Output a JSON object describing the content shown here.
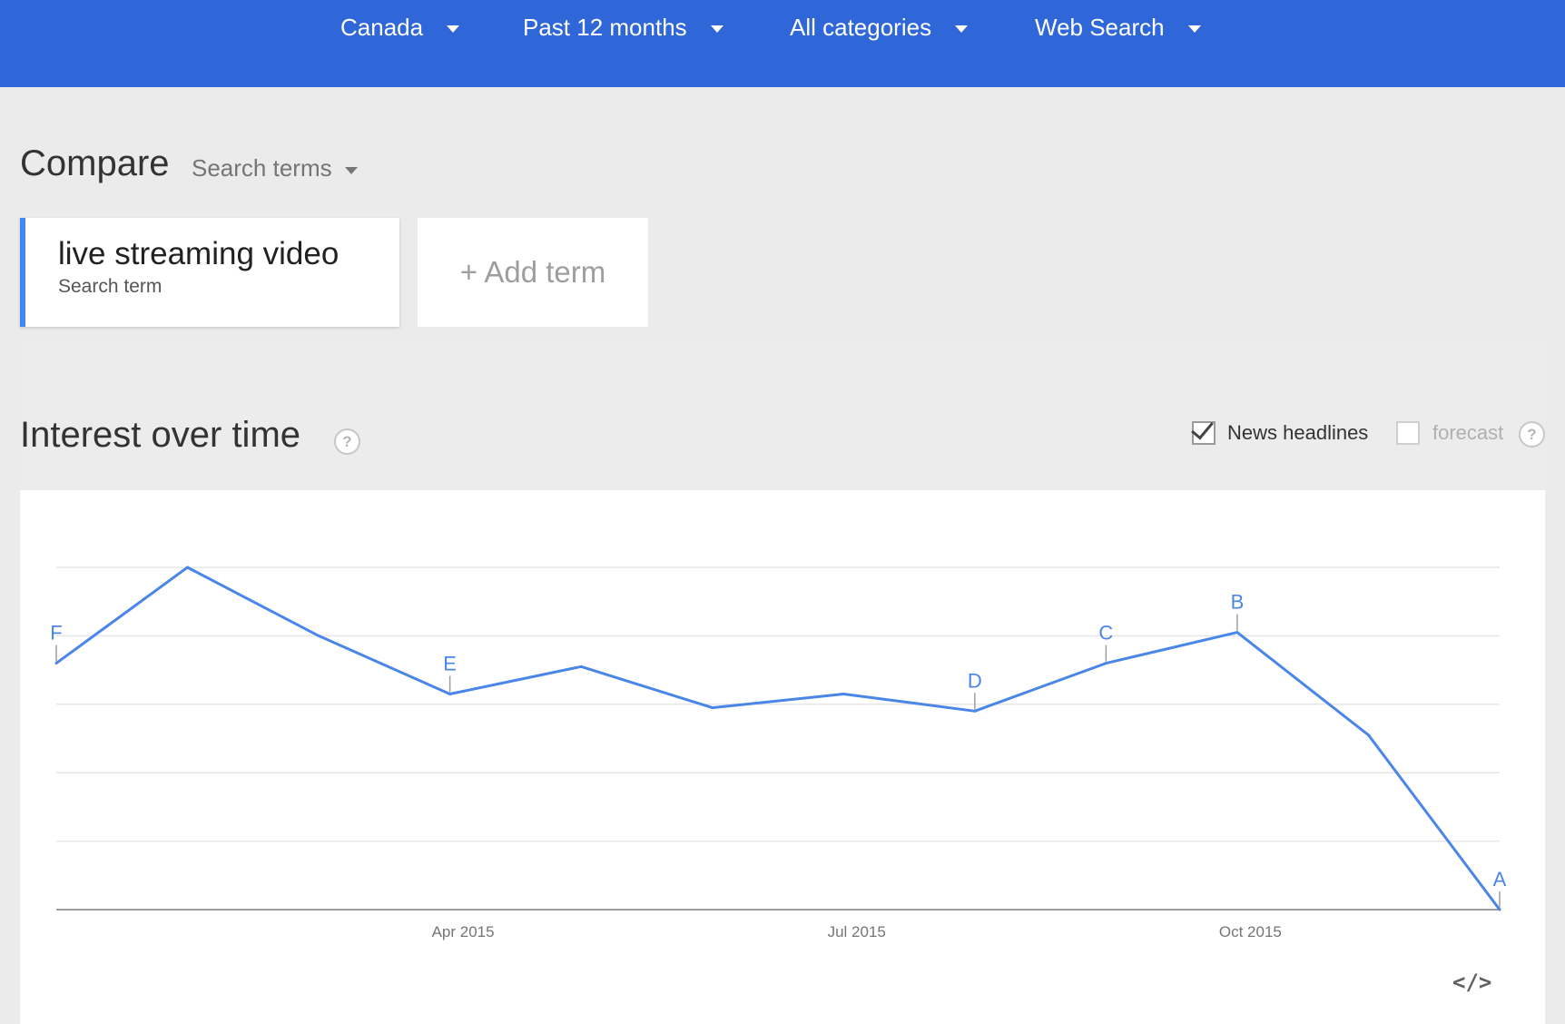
{
  "header": {
    "filters": [
      {
        "label": "Canada"
      },
      {
        "label": "Past 12 months"
      },
      {
        "label": "All categories"
      },
      {
        "label": "Web Search"
      }
    ]
  },
  "compare": {
    "title": "Compare",
    "select_label": "Search terms",
    "term": {
      "name": "live streaming video",
      "subtitle": "Search term",
      "color": "#4285f4"
    },
    "add_term_label": "+ Add term"
  },
  "interest": {
    "title": "Interest over time",
    "help_icon": "question-mark-icon",
    "news_headlines": {
      "label": "News headlines",
      "checked": true
    },
    "forecast": {
      "label": "forecast",
      "checked": false
    },
    "embed_icon": "code-embed-icon",
    "embed_label": "</>"
  },
  "chart_data": {
    "type": "line",
    "title": "",
    "xlabel": "",
    "ylabel": "",
    "x_ticks": [
      "Apr 2015",
      "Jul 2015",
      "Oct 2015"
    ],
    "grid": true,
    "ylim": [
      0,
      100
    ],
    "series": [
      {
        "color": "#4a86e8",
        "points": [
          {
            "x": "2015-01",
            "y": 72
          },
          {
            "x": "2015-02",
            "y": 100
          },
          {
            "x": "2015-03",
            "y": 80
          },
          {
            "x": "2015-04",
            "y": 63
          },
          {
            "x": "2015-05",
            "y": 71
          },
          {
            "x": "2015-06",
            "y": 59
          },
          {
            "x": "2015-07",
            "y": 63
          },
          {
            "x": "2015-08",
            "y": 58
          },
          {
            "x": "2015-09",
            "y": 72
          },
          {
            "x": "2015-10",
            "y": 81
          },
          {
            "x": "2015-11",
            "y": 51
          },
          {
            "x": "2015-12",
            "y": 0
          }
        ]
      }
    ],
    "annotations": [
      {
        "label": "F",
        "x": "2015-01"
      },
      {
        "label": "E",
        "x": "2015-04"
      },
      {
        "label": "D",
        "x": "2015-08"
      },
      {
        "label": "C",
        "x": "2015-09"
      },
      {
        "label": "B",
        "x": "2015-10"
      },
      {
        "label": "A",
        "x": "2015-12"
      }
    ]
  }
}
